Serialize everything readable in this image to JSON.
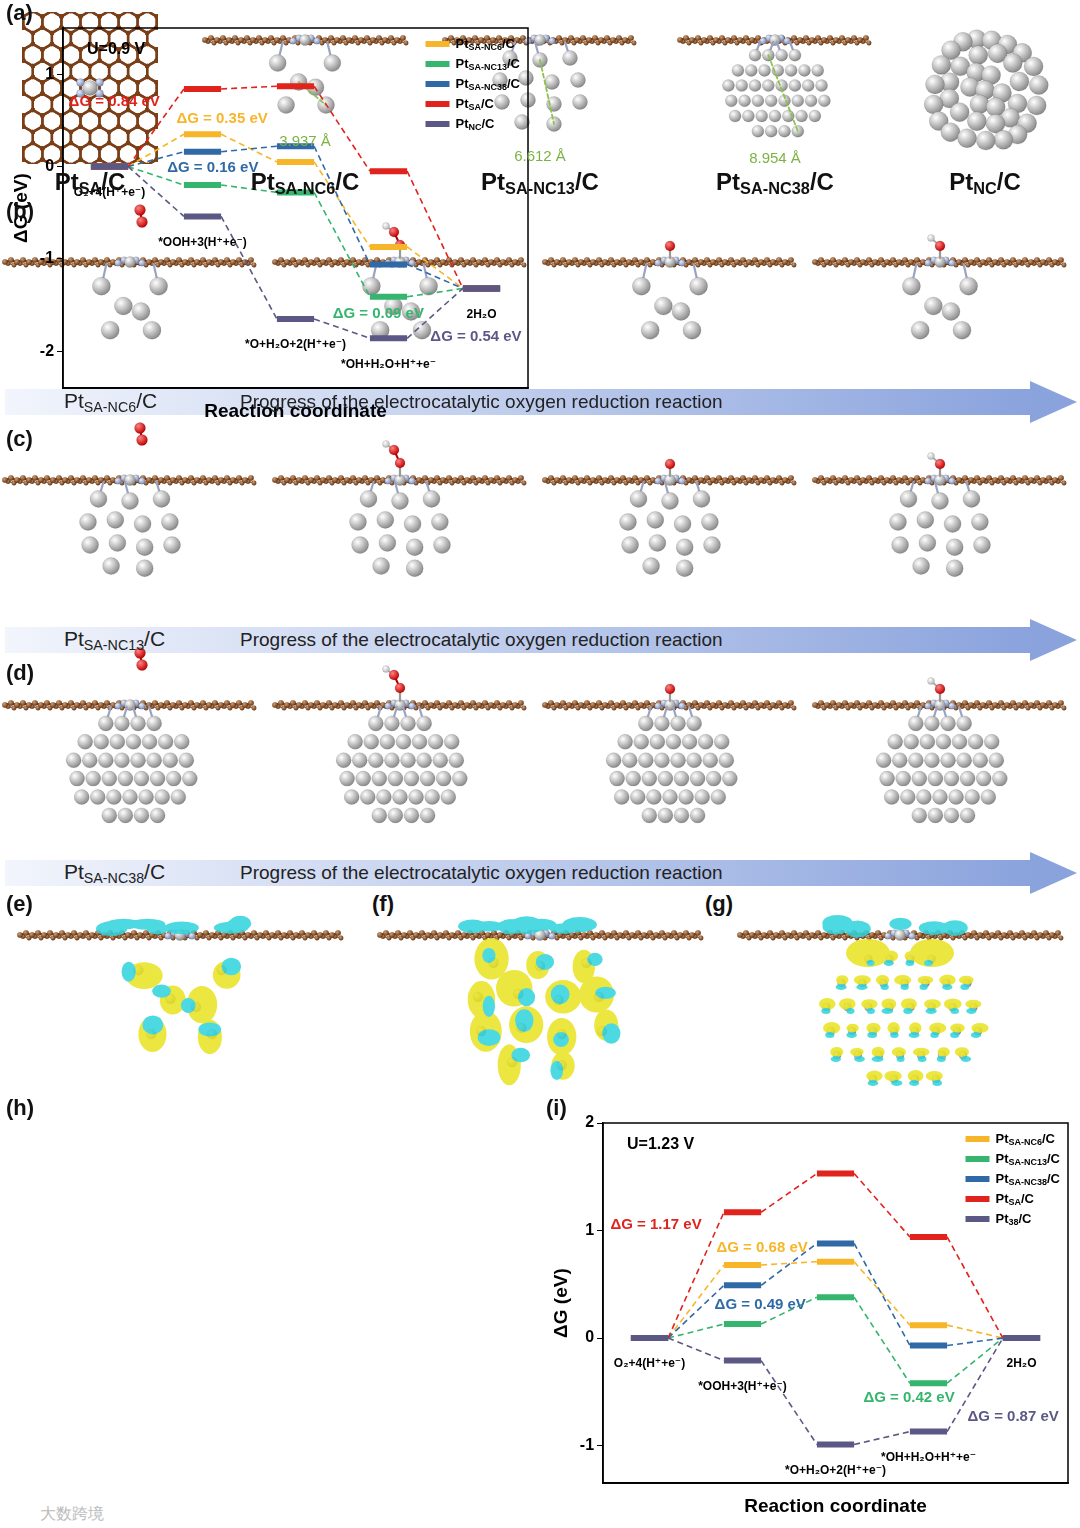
{
  "figure": {
    "panel_a": {
      "label": "(a)",
      "structures": [
        {
          "name": "PtSA/C"
        },
        {
          "name": "PtSA-NC6/C",
          "distance": "3.937 Å"
        },
        {
          "name": "PtSA-NC13/C",
          "distance": "6.612 Å"
        },
        {
          "name": "PtSA-NC38/C",
          "distance": "8.954 Å"
        },
        {
          "name": "PtNC/C"
        }
      ]
    },
    "reaction_rows": [
      {
        "label": "(b)",
        "catalyst": "PtSA-NC6/C",
        "arrow_text": "Progress of the electrocatalytic oxygen reduction reaction"
      },
      {
        "label": "(c)",
        "catalyst": "PtSA-NC13/C",
        "arrow_text": "Progress of the electrocatalytic oxygen reduction reaction"
      },
      {
        "label": "(d)",
        "catalyst": "PtSA-NC38/C",
        "arrow_text": "Progress of the electrocatalytic oxygen reduction reaction"
      }
    ],
    "charge_density": {
      "labels": [
        "(e)",
        "(f)",
        "(g)"
      ]
    },
    "watermark": "大数跨境"
  },
  "chart_data": [
    {
      "type": "line",
      "title": "(h)",
      "subtitle": "U=0.9 V",
      "x_label": "Reaction coordinate",
      "y_label": "ΔG (eV)",
      "categories": [
        "O₂+4(H⁺+e⁻)",
        "*OOH+3(H⁺+e⁻)",
        "*O+H₂O+2(H⁺+e⁻)",
        "*OH+H₂O+H⁺+e⁻",
        "2H₂O"
      ],
      "series": [
        {
          "name": "PtSA-NC6/C",
          "color": "#f7b62a",
          "values": [
            0,
            0.35,
            0.05,
            -0.87,
            -1.32
          ]
        },
        {
          "name": "PtSA-NC13/C",
          "color": "#35b56e",
          "values": [
            0,
            -0.2,
            -0.28,
            -1.41,
            -1.32
          ]
        },
        {
          "name": "PtSA-NC38/C",
          "color": "#2f6aa6",
          "values": [
            0,
            0.16,
            0.22,
            -1.06,
            -1.32
          ]
        },
        {
          "name": "PtSA/C",
          "color": "#e0231d",
          "values": [
            0,
            0.84,
            0.87,
            -0.05,
            -1.32
          ]
        },
        {
          "name": "PtNC/C",
          "color": "#5c5886",
          "values": [
            0,
            -0.54,
            -1.65,
            -1.86,
            -1.32
          ]
        }
      ],
      "ylim": [
        -2.4,
        1.5
      ],
      "yticks": [
        -2,
        -1,
        0,
        1
      ],
      "grid": false,
      "legend": "upper right",
      "tick_labels": "y",
      "line_style": "dashed",
      "annotations": [
        {
          "text": "ΔG = 0.84 eV",
          "color": "#e0231d",
          "x": -0.44,
          "y": 0.7
        },
        {
          "text": "ΔG = 0.35 eV",
          "color": "#f7b62a",
          "x": 0.72,
          "y": 0.52
        },
        {
          "text": "ΔG = 0.16 eV",
          "color": "#2f6aa6",
          "x": 0.62,
          "y": -0.01
        },
        {
          "text": "ΔG = 0.09 eV",
          "color": "#35b56e",
          "x": 2.4,
          "y": -1.59
        },
        {
          "text": "ΔG = 0.54 eV",
          "color": "#5c5886",
          "x": 3.45,
          "y": -1.84
        }
      ]
    },
    {
      "type": "line",
      "title": "(i)",
      "subtitle": "U=1.23 V",
      "x_label": "Reaction coordinate",
      "y_label": "ΔG (eV)",
      "categories": [
        "O₂+4(H⁺+e⁻)",
        "*OOH+3(H⁺+e⁻)",
        "*O+H₂O+2(H⁺+e⁻)",
        "*OH+H₂O+H⁺+e⁻",
        "2H₂O"
      ],
      "series": [
        {
          "name": "PtSA-NC6/C",
          "color": "#f7b62a",
          "values": [
            0,
            0.68,
            0.71,
            0.12,
            0
          ]
        },
        {
          "name": "PtSA-NC13/C",
          "color": "#35b56e",
          "values": [
            0,
            0.13,
            0.38,
            -0.42,
            0
          ]
        },
        {
          "name": "PtSA-NC38/C",
          "color": "#2f6aa6",
          "values": [
            0,
            0.49,
            0.88,
            -0.07,
            0
          ]
        },
        {
          "name": "PtSA/C",
          "color": "#e0231d",
          "values": [
            0,
            1.17,
            1.53,
            0.94,
            0
          ]
        },
        {
          "name": "Pt38/C",
          "color": "#5c5886",
          "values": [
            0,
            -0.21,
            -0.99,
            -0.87,
            0
          ]
        }
      ],
      "ylim": [
        -1.35,
        2
      ],
      "yticks": [
        -1,
        0,
        1,
        2
      ],
      "grid": false,
      "legend": "upper right",
      "tick_labels": "y",
      "line_style": "dashed",
      "annotations": [
        {
          "text": "ΔG = 1.17 eV",
          "color": "#e0231d",
          "x": -0.42,
          "y": 1.05
        },
        {
          "text": "ΔG = 0.68 eV",
          "color": "#f7b62a",
          "x": 0.72,
          "y": 0.84
        },
        {
          "text": "ΔG = 0.49 eV",
          "color": "#2f6aa6",
          "x": 0.7,
          "y": 0.31
        },
        {
          "text": "ΔG = 0.42 eV",
          "color": "#35b56e",
          "x": 2.3,
          "y": -0.56
        },
        {
          "text": "ΔG = 0.87 eV",
          "color": "#5c5886",
          "x": 3.42,
          "y": -0.73
        }
      ]
    }
  ]
}
